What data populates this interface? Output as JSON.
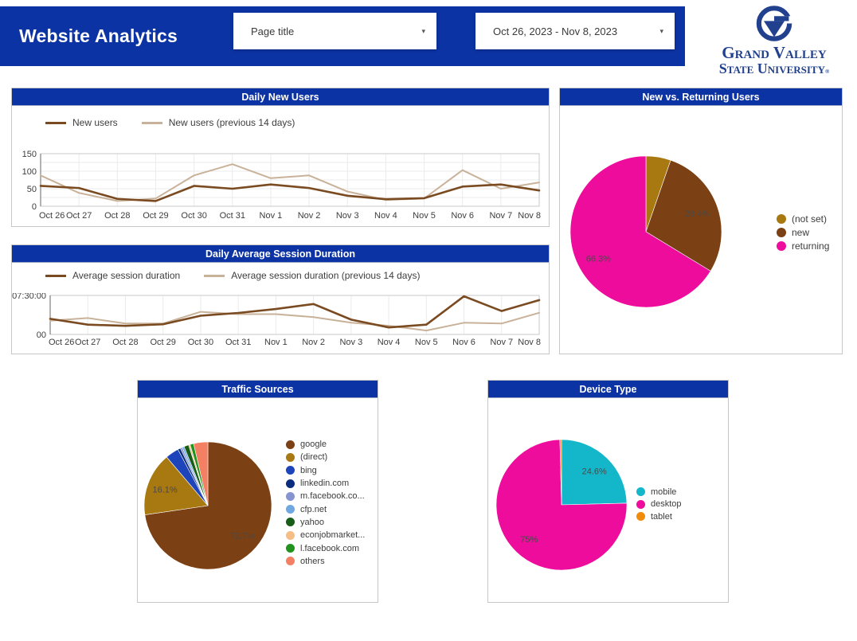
{
  "header": {
    "title": "Website Analytics",
    "page_title_dropdown": {
      "label": "Page title",
      "caret": "▾"
    },
    "date_range_dropdown": {
      "label": "Oct 26, 2023 - Nov 8, 2023",
      "caret": "▾"
    }
  },
  "logo": {
    "line1": "Grand Valley",
    "line2": "State University",
    "mark": "®"
  },
  "colors": {
    "header_blue": "#0c33a3",
    "card_border": "#c7c7c7",
    "grid": "#ebebeb",
    "plot_border": "#c9c9c9",
    "axis_text": "#3d3d3d",
    "pie_label_text": "#4a4a4a"
  },
  "chart_data": [
    {
      "type": "line",
      "title": "Daily New Users",
      "x": [
        "Oct 26",
        "Oct 27",
        "Oct 28",
        "Oct 29",
        "Oct 30",
        "Oct 31",
        "Nov 1",
        "Nov 2",
        "Nov 3",
        "Nov 4",
        "Nov 5",
        "Nov 6",
        "Nov 7",
        "Nov 8"
      ],
      "ylim": [
        0,
        150
      ],
      "y_grid": [
        0,
        25,
        50,
        75,
        100,
        125,
        150
      ],
      "y_ticks": [
        {
          "value": 0,
          "label": "0"
        },
        {
          "value": 50,
          "label": "50"
        },
        {
          "value": 100,
          "label": "100"
        },
        {
          "value": 150,
          "label": "150"
        }
      ],
      "series": [
        {
          "name": "New users",
          "color": "#7a4a21",
          "values": [
            58,
            52,
            21,
            15,
            58,
            50,
            62,
            52,
            30,
            20,
            23,
            56,
            62,
            45
          ]
        },
        {
          "name": "New users (previous 14 days)",
          "color": "#c9b29a",
          "values": [
            88,
            38,
            15,
            22,
            88,
            120,
            80,
            88,
            42,
            18,
            22,
            103,
            50,
            68
          ]
        }
      ]
    },
    {
      "type": "pie",
      "title": "New vs. Returning Users",
      "slices": [
        {
          "label": "(not set)",
          "value": 5.3,
          "color": "#a87811",
          "pct_label": ""
        },
        {
          "label": "new",
          "value": 28.4,
          "color": "#7b4013",
          "pct_label": "28.4%"
        },
        {
          "label": "returning",
          "value": 66.3,
          "color": "#ee0c9c",
          "pct_label": "66.3%"
        }
      ]
    },
    {
      "type": "line",
      "title": "Daily Average Session Duration",
      "x": [
        "Oct 26",
        "Oct 27",
        "Oct 28",
        "Oct 29",
        "Oct 30",
        "Oct 31",
        "Nov 1",
        "Nov 2",
        "Nov 3",
        "Nov 4",
        "Nov 5",
        "Nov 6",
        "Nov 7",
        "Nov 8"
      ],
      "ylim": [
        0,
        450
      ],
      "y_grid": [
        0,
        450
      ],
      "y_ticks": [
        {
          "value": 0,
          "label": "00"
        },
        {
          "value": 450,
          "label": "07:30:00"
        }
      ],
      "series": [
        {
          "name": "Average session duration",
          "color": "#7a4a21",
          "values": [
            180,
            113,
            99,
            117,
            216,
            248,
            293,
            351,
            171,
            81,
            113,
            440,
            270,
            396
          ]
        },
        {
          "name": "Average session duration (previous 14 days)",
          "color": "#c9b29a",
          "values": [
            158,
            189,
            126,
            126,
            261,
            234,
            234,
            200,
            135,
            100,
            45,
            135,
            126,
            250
          ]
        }
      ]
    },
    {
      "type": "pie",
      "title": "Traffic Sources",
      "slices": [
        {
          "label": "google",
          "value": 72.7,
          "color": "#7b4013",
          "pct_label": "72.7%"
        },
        {
          "label": "(direct)",
          "value": 16.1,
          "color": "#a87811",
          "pct_label": "16.1%"
        },
        {
          "label": "bing",
          "value": 3.4,
          "color": "#1d44bb",
          "pct_label": ""
        },
        {
          "label": "linkedin.com",
          "value": 0.7,
          "color": "#0b2d7d",
          "pct_label": ""
        },
        {
          "label": "m.facebook.co...",
          "value": 0.5,
          "color": "#8695d1",
          "pct_label": ""
        },
        {
          "label": "cfp.net",
          "value": 0.5,
          "color": "#6fa7e0",
          "pct_label": ""
        },
        {
          "label": "yahoo",
          "value": 1.2,
          "color": "#175c17",
          "pct_label": ""
        },
        {
          "label": "econjobmarket...",
          "value": 0.4,
          "color": "#f6bd87",
          "pct_label": ""
        },
        {
          "label": "l.facebook.com",
          "value": 0.9,
          "color": "#22921f",
          "pct_label": ""
        },
        {
          "label": "others",
          "value": 3.6,
          "color": "#f48063",
          "pct_label": ""
        }
      ]
    },
    {
      "type": "pie",
      "title": "Device Type",
      "slices": [
        {
          "label": "mobile",
          "value": 24.6,
          "color": "#14b7ca",
          "pct_label": "24.6%"
        },
        {
          "label": "desktop",
          "value": 75.0,
          "color": "#ee0c9c",
          "pct_label": "75%"
        },
        {
          "label": "tablet",
          "value": 0.4,
          "color": "#f08b0c",
          "pct_label": ""
        }
      ]
    }
  ]
}
